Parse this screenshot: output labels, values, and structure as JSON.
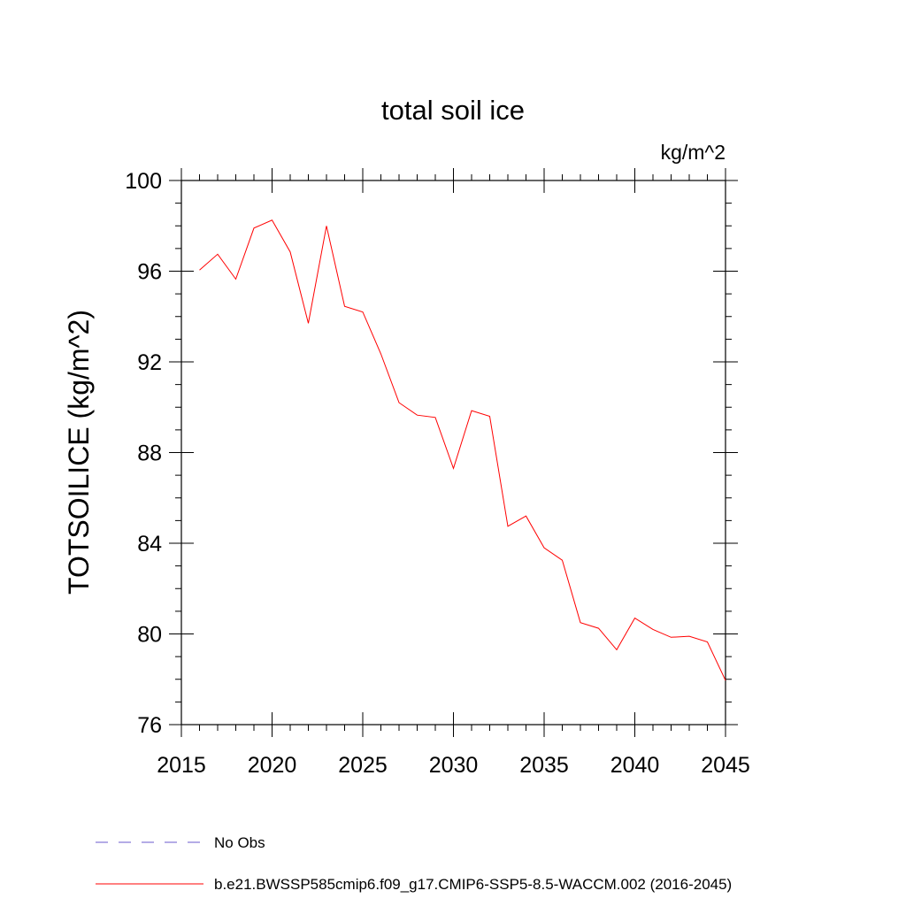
{
  "chart_data": {
    "type": "line",
    "title": "total soil ice",
    "units": "kg/m^2",
    "xlabel": "",
    "ylabel": "TOTSOILICE  (kg/m^2)",
    "xlim": [
      2015,
      2045
    ],
    "ylim": [
      76,
      100
    ],
    "x_ticks": [
      2015,
      2020,
      2025,
      2030,
      2035,
      2040,
      2045
    ],
    "y_ticks": [
      76,
      80,
      84,
      88,
      92,
      96,
      100
    ],
    "x_minor_step": 1,
    "y_minor_step": 1,
    "grid": false,
    "series": [
      {
        "name": "b.e21.BWSSP585cmip6.f09_g17.CMIP6-SSP5-8.5-WACCM.002 (2016-2045)",
        "color": "#ff0000",
        "dash": "solid",
        "x": [
          2016,
          2017,
          2018,
          2019,
          2020,
          2021,
          2022,
          2023,
          2024,
          2025,
          2026,
          2027,
          2028,
          2029,
          2030,
          2031,
          2032,
          2033,
          2034,
          2035,
          2036,
          2037,
          2038,
          2039,
          2040,
          2041,
          2042,
          2043,
          2044,
          2045
        ],
        "values": [
          96.05,
          96.75,
          95.65,
          97.9,
          98.25,
          96.85,
          93.7,
          98.0,
          94.45,
          94.2,
          92.35,
          90.2,
          89.65,
          89.55,
          87.3,
          89.85,
          89.6,
          84.75,
          85.2,
          83.8,
          83.25,
          80.5,
          80.25,
          79.3,
          80.7,
          80.2,
          79.85,
          79.9,
          79.65,
          77.95
        ]
      }
    ],
    "legend": [
      {
        "label": "No Obs",
        "color": "#6a5acd",
        "dash": "dashed"
      },
      {
        "label": "b.e21.BWSSP585cmip6.f09_g17.CMIP6-SSP5-8.5-WACCM.002 (2016-2045)",
        "color": "#ff0000",
        "dash": "solid"
      }
    ],
    "legend_position": "bottom"
  }
}
